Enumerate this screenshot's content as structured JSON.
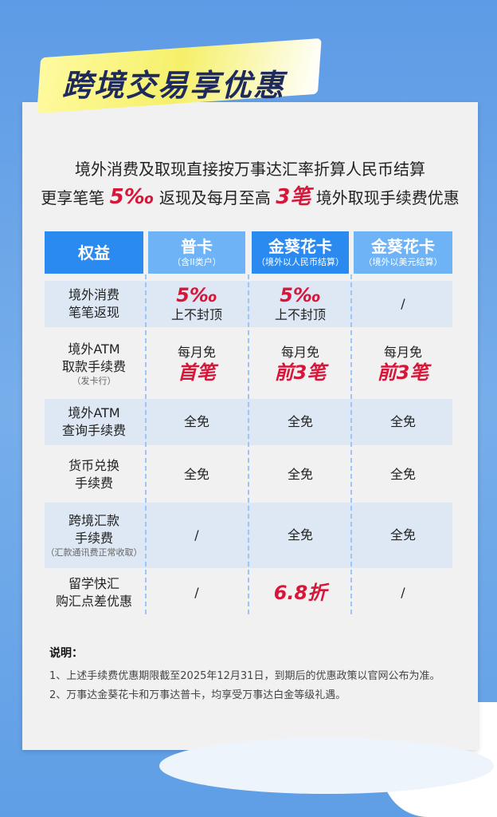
{
  "title": "跨境交易享优惠",
  "intro": {
    "line1": "境外消费及取现直接按万事达汇率折算人民币结算",
    "line2_a": "更享笔笔",
    "line2_b": "5‰",
    "line2_c": "返现及每月至高",
    "line2_d": "3笔",
    "line2_e": "境外取现手续费优惠"
  },
  "table": {
    "headers": [
      {
        "title": "权益",
        "sub": ""
      },
      {
        "title": "普卡",
        "sub": "（含II类户）"
      },
      {
        "title": "金葵花卡",
        "sub": "（境外以人民币结算）"
      },
      {
        "title": "金葵花卡",
        "sub": "（境外以美元结算）"
      }
    ],
    "rows": [
      {
        "label": [
          "境外消费",
          "笔笔返现"
        ],
        "note": "",
        "cells": [
          [
            "5‰",
            "上不封顶"
          ],
          [
            "5‰",
            "上不封顶"
          ],
          [
            "/",
            ""
          ]
        ]
      },
      {
        "label": [
          "境外ATM",
          "取款手续费"
        ],
        "note": "（发卡行）",
        "cells": [
          [
            "每月免",
            "首笔"
          ],
          [
            "每月免",
            "前3笔"
          ],
          [
            "每月免",
            "前3笔"
          ]
        ]
      },
      {
        "label": [
          "境外ATM",
          "查询手续费"
        ],
        "note": "",
        "cells": [
          "全免",
          "全免",
          "全免"
        ]
      },
      {
        "label": [
          "货币兑换",
          "手续费"
        ],
        "note": "",
        "cells": [
          "全免",
          "全免",
          "全免"
        ]
      },
      {
        "label": [
          "跨境汇款",
          "手续费"
        ],
        "note": "（汇款通讯费正常收取）",
        "cells": [
          "/",
          "全免",
          "全免"
        ]
      },
      {
        "label": [
          "留学快汇",
          "购汇点差优惠"
        ],
        "note": "",
        "cells": [
          "/",
          "6.8折",
          "/"
        ]
      }
    ]
  },
  "notes": {
    "heading": "说明：",
    "items": [
      "1、上述手续费优惠期限截至2025年12月31日，到期后的优惠政策以官网公布为准。",
      "2、万事达金葵花卡和万事达普卡，均享受万事达白金等级礼遇。"
    ]
  },
  "colors": {
    "header_dark": "#2b8af0",
    "header_light": "#6db3f6",
    "accent_red": "#d6173a",
    "row_shade": "#dde8f4"
  }
}
